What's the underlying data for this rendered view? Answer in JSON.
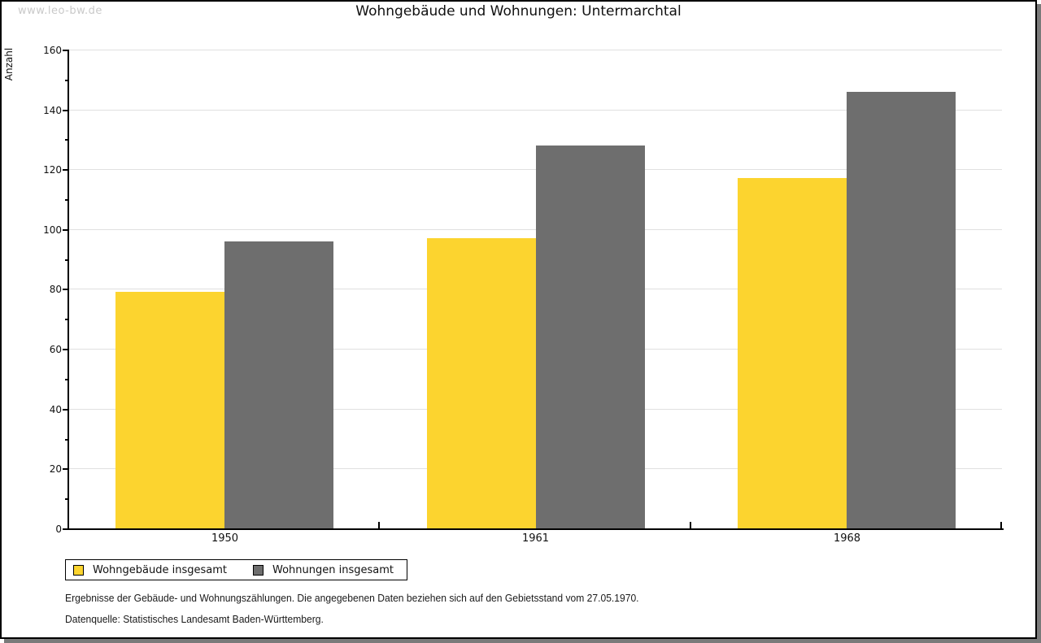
{
  "frame": {
    "watermark": "www.leo-bw.de"
  },
  "title": "Wohngebäude und Wohnungen: Untermarchtal",
  "chart_data": {
    "type": "bar",
    "title": "Wohngebäude und Wohnungen: Untermarchtal",
    "ylabel": "Anzahl",
    "xlabel": "",
    "categories": [
      "1950",
      "1961",
      "1968"
    ],
    "series": [
      {
        "name": "Wohngebäude insgesamt",
        "color": "#FCD42F",
        "values": [
          79,
          97,
          117
        ]
      },
      {
        "name": "Wohnungen insgesamt",
        "color": "#6E6E6E",
        "values": [
          96,
          128,
          146
        ]
      }
    ],
    "ylim": [
      0,
      160
    ],
    "y_major_step": 20,
    "y_minor_step": 10,
    "grid": true,
    "legend_position": "bottom-left"
  },
  "footnotes": {
    "line1": "Ergebnisse der Gebäude- und Wohnungszählungen. Die angegebenen Daten beziehen sich auf den Gebietsstand vom 27.05.1970.",
    "line2": "Datenquelle: Statistisches Landesamt Baden-Württemberg."
  },
  "colors": {
    "axis": "#000000",
    "grid": "#E0E0E0",
    "watermark": "#C9C9C9",
    "shadow": "#7A7A7A"
  }
}
